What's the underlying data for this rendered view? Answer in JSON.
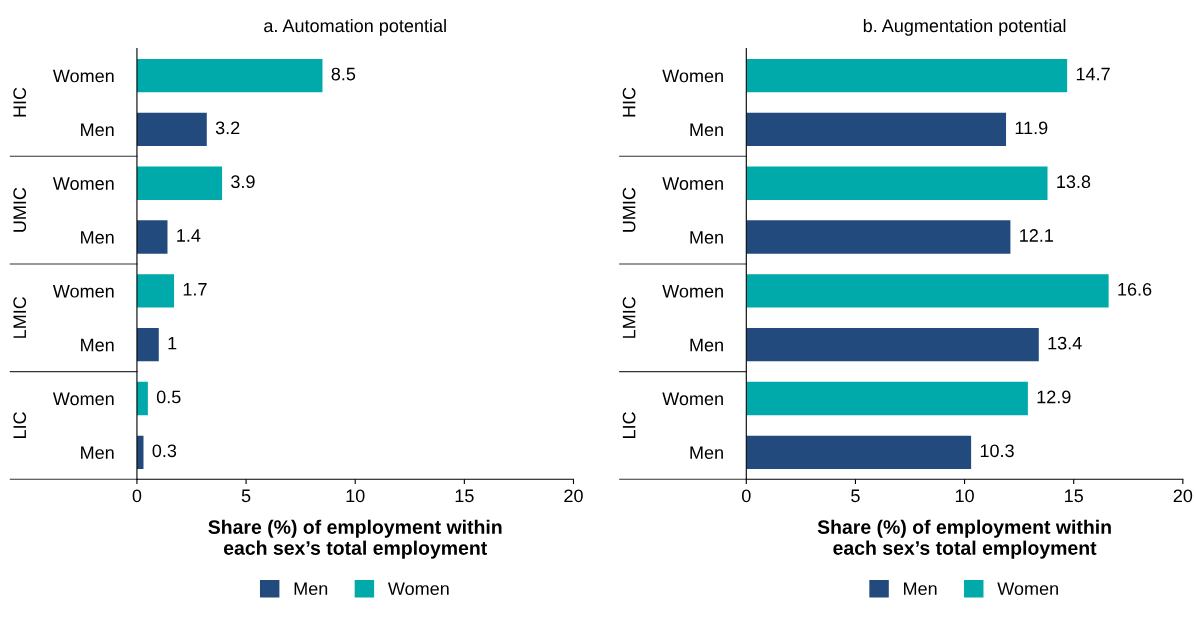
{
  "chart_data": [
    {
      "type": "bar",
      "orientation": "horizontal",
      "title": "a. Automation potential",
      "xlabel": "Share (%) of employment within\neach sex’s total employment",
      "categories": [
        "Women",
        "Men",
        "Women",
        "Men",
        "Women",
        "Men",
        "Women",
        "Men"
      ],
      "annotations": [
        "HIC",
        "UMIC",
        "LMIC",
        "LIC"
      ],
      "series": [
        {
          "name": "Men",
          "color": "#234a7c",
          "values": [
            null,
            3.2,
            null,
            1.4,
            null,
            1,
            null,
            0.3
          ]
        },
        {
          "name": "Women",
          "color": "#00a9aa",
          "values": [
            8.5,
            null,
            3.9,
            null,
            1.7,
            null,
            0.5,
            null
          ]
        }
      ],
      "xlim": [
        0,
        20
      ],
      "xticks": [
        0,
        5,
        10,
        15,
        20
      ],
      "data_labels": true,
      "grid": false,
      "legend": "bottom"
    },
    {
      "type": "bar",
      "orientation": "horizontal",
      "title": "b. Augmentation potential",
      "xlabel": "Share (%) of employment within\neach sex’s total employment",
      "categories": [
        "Women",
        "Men",
        "Women",
        "Men",
        "Women",
        "Men",
        "Women",
        "Men"
      ],
      "annotations": [
        "HIC",
        "UMIC",
        "LMIC",
        "LIC"
      ],
      "series": [
        {
          "name": "Men",
          "color": "#234a7c",
          "values": [
            null,
            11.9,
            null,
            12.1,
            null,
            13.4,
            null,
            10.3
          ]
        },
        {
          "name": "Women",
          "color": "#00a9aa",
          "values": [
            14.7,
            null,
            13.8,
            null,
            16.6,
            null,
            12.9,
            null
          ]
        }
      ],
      "xlim": [
        0,
        20
      ],
      "xticks": [
        0,
        5,
        10,
        15,
        20
      ],
      "data_labels": true,
      "grid": false,
      "legend": "bottom"
    }
  ]
}
